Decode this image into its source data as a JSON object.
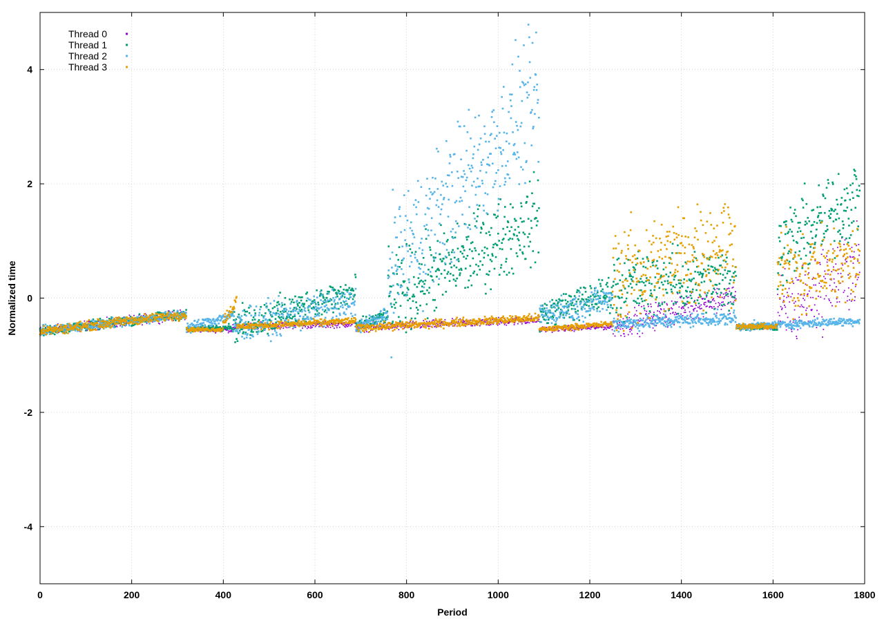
{
  "chart_data": {
    "type": "scatter",
    "title": "",
    "xlabel": "Period",
    "ylabel": "Normalized time",
    "xlim": [
      0,
      1800
    ],
    "ylim": [
      -5,
      5
    ],
    "xticks": [
      0,
      200,
      400,
      600,
      800,
      1000,
      1200,
      1400,
      1600,
      1800
    ],
    "yticks": [
      -4,
      -2,
      0,
      2,
      4
    ],
    "grid": true,
    "legend_position": "top-left",
    "series": [
      {
        "name": "Thread 0",
        "color": "#9400d3",
        "marker": "small-dot",
        "segments": [
          {
            "x": [
              0,
              320
            ],
            "y": [
              -0.58,
              -0.28
            ],
            "noise": 0.07
          },
          {
            "x": [
              320,
              420
            ],
            "y": [
              -0.55,
              -0.55
            ],
            "noise": 0.04
          },
          {
            "x": [
              420,
              690
            ],
            "y": [
              -0.5,
              -0.45
            ],
            "noise": 0.05
          },
          {
            "x": [
              690,
              1090
            ],
            "y": [
              -0.52,
              -0.38
            ],
            "noise": 0.06
          },
          {
            "x": [
              1090,
              1250
            ],
            "y": [
              -0.55,
              -0.5
            ],
            "noise": 0.04
          },
          {
            "x": [
              1250,
              1520
            ],
            "y": [
              -0.5,
              0.05
            ],
            "noise": 0.2
          },
          {
            "x": [
              1520,
              1610
            ],
            "y": [
              -0.5,
              -0.5
            ],
            "noise": 0.04
          },
          {
            "x": [
              1610,
              1790
            ],
            "y": [
              -0.3,
              0.6
            ],
            "noise": 0.6
          }
        ]
      },
      {
        "name": "Thread 1",
        "color": "#009e73",
        "marker": "small-square",
        "segments": [
          {
            "x": [
              0,
              320
            ],
            "y": [
              -0.58,
              -0.28
            ],
            "noise": 0.07
          },
          {
            "x": [
              320,
              420
            ],
            "y": [
              -0.55,
              -0.5
            ],
            "noise": 0.04
          },
          {
            "x": [
              420,
              690
            ],
            "y": [
              -0.5,
              0.1
            ],
            "noise": 0.25
          },
          {
            "x": [
              690,
              760
            ],
            "y": [
              -0.5,
              -0.3
            ],
            "noise": 0.1
          },
          {
            "x": [
              760,
              1090
            ],
            "y": [
              0.0,
              1.4
            ],
            "noise": 0.6
          },
          {
            "x": [
              1090,
              1250
            ],
            "y": [
              -0.3,
              0.1
            ],
            "noise": 0.25
          },
          {
            "x": [
              1250,
              1520
            ],
            "y": [
              0.2,
              0.3
            ],
            "noise": 0.5
          },
          {
            "x": [
              1520,
              1610
            ],
            "y": [
              -0.5,
              -0.5
            ],
            "noise": 0.05
          },
          {
            "x": [
              1610,
              1790
            ],
            "y": [
              0.8,
              1.8
            ],
            "noise": 0.6
          }
        ]
      },
      {
        "name": "Thread 2",
        "color": "#56b4e9",
        "marker": "small-square",
        "segments": [
          {
            "x": [
              0,
              320
            ],
            "y": [
              -0.58,
              -0.28
            ],
            "noise": 0.07
          },
          {
            "x": [
              320,
              420
            ],
            "y": [
              -0.52,
              -0.3
            ],
            "noise": 0.08
          },
          {
            "x": [
              420,
              690
            ],
            "y": [
              -0.5,
              -0.1
            ],
            "noise": 0.25
          },
          {
            "x": [
              690,
              760
            ],
            "y": [
              -0.5,
              -0.3
            ],
            "noise": 0.1
          },
          {
            "x": [
              760,
              1090
            ],
            "y": [
              0.5,
              3.5
            ],
            "noise": 1.0
          },
          {
            "x": [
              1090,
              1250
            ],
            "y": [
              -0.3,
              0.0
            ],
            "noise": 0.2
          },
          {
            "x": [
              1250,
              1520
            ],
            "y": [
              -0.45,
              -0.35
            ],
            "noise": 0.1
          },
          {
            "x": [
              1520,
              1790
            ],
            "y": [
              -0.5,
              -0.4
            ],
            "noise": 0.06
          }
        ]
      },
      {
        "name": "Thread 3",
        "color": "#e69f00",
        "marker": "small-square",
        "segments": [
          {
            "x": [
              0,
              320
            ],
            "y": [
              -0.58,
              -0.28
            ],
            "noise": 0.07
          },
          {
            "x": [
              320,
              400
            ],
            "y": [
              -0.55,
              -0.55
            ],
            "noise": 0.03
          },
          {
            "x": [
              400,
              430
            ],
            "y": [
              -0.4,
              -0.05
            ],
            "noise": 0.1
          },
          {
            "x": [
              430,
              690
            ],
            "y": [
              -0.5,
              -0.4
            ],
            "noise": 0.05
          },
          {
            "x": [
              690,
              1090
            ],
            "y": [
              -0.52,
              -0.35
            ],
            "noise": 0.06
          },
          {
            "x": [
              1090,
              1250
            ],
            "y": [
              -0.55,
              -0.45
            ],
            "noise": 0.04
          },
          {
            "x": [
              1250,
              1520
            ],
            "y": [
              0.3,
              1.0
            ],
            "noise": 0.8
          },
          {
            "x": [
              1520,
              1610
            ],
            "y": [
              -0.5,
              -0.5
            ],
            "noise": 0.04
          },
          {
            "x": [
              1610,
              1790
            ],
            "y": [
              0.4,
              0.6
            ],
            "noise": 0.6
          }
        ]
      }
    ]
  }
}
